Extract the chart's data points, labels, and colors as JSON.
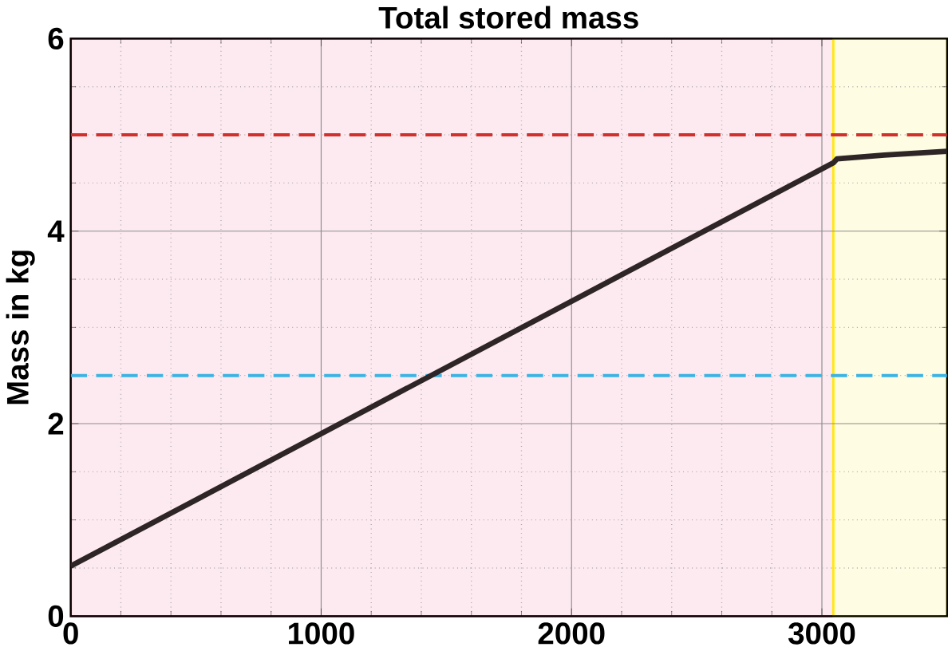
{
  "chart_data": {
    "type": "line",
    "title": "Total stored mass",
    "ylabel": "Mass in kg",
    "xlim": [
      0,
      3500
    ],
    "ylim": [
      0,
      6
    ],
    "xticks": [
      0,
      1000,
      2000,
      3000
    ],
    "yticks": [
      0,
      2,
      4,
      6
    ],
    "grid": true,
    "series": [
      {
        "color": "#2e2626",
        "x": [
          0,
          3046,
          3060,
          3250,
          3500
        ],
        "values": [
          0.52,
          4.71,
          4.75,
          4.79,
          4.83
        ]
      }
    ],
    "ref_lines": [
      {
        "axis": "y",
        "value": 5,
        "color": "#d0312d",
        "line_style": "dashed"
      },
      {
        "axis": "y",
        "value": 2.5,
        "color": "#3db3e3",
        "line_style": "dashed"
      }
    ],
    "bands": [
      {
        "axis": "x",
        "from": 0,
        "to": 3046,
        "color": "#fdeaf0"
      },
      {
        "axis": "x",
        "from": 3046,
        "to": 3500,
        "color": "#fefce2"
      }
    ]
  }
}
